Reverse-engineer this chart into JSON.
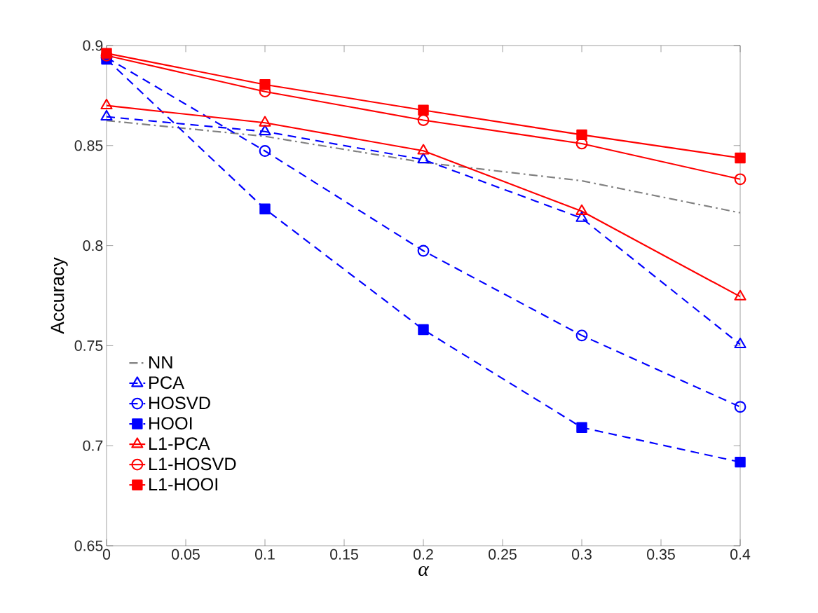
{
  "chart_data": {
    "type": "line",
    "xlabel": "α",
    "ylabel": "Accuracy",
    "x": [
      0,
      0.1,
      0.2,
      0.3,
      0.4
    ],
    "series": [
      {
        "name": "NN",
        "color": "#808080",
        "line_style": "dashdot",
        "marker": "none",
        "values": [
          0.8625,
          0.8546,
          0.8416,
          0.8324,
          0.8164
        ]
      },
      {
        "name": "PCA",
        "color": "#0000ff",
        "line_style": "dashed",
        "marker": "triangle",
        "values": [
          0.8644,
          0.857,
          0.843,
          0.8137,
          0.7506
        ]
      },
      {
        "name": "HOSVD",
        "color": "#0000ff",
        "line_style": "dashed",
        "marker": "circle",
        "values": [
          0.894,
          0.8473,
          0.7974,
          0.7551,
          0.7194
        ]
      },
      {
        "name": "HOOI",
        "color": "#0000ff",
        "line_style": "dashed",
        "marker": "square",
        "values": [
          0.8932,
          0.8183,
          0.758,
          0.7091,
          0.6918
        ]
      },
      {
        "name": "L1-PCA",
        "color": "#ff0000",
        "line_style": "solid",
        "marker": "triangle",
        "values": [
          0.87,
          0.8614,
          0.8474,
          0.8172,
          0.7745
        ]
      },
      {
        "name": "L1-HOSVD",
        "color": "#ff0000",
        "line_style": "solid",
        "marker": "circle",
        "values": [
          0.895,
          0.877,
          0.8627,
          0.851,
          0.8332
        ]
      },
      {
        "name": "L1-HOOI",
        "color": "#ff0000",
        "line_style": "solid",
        "marker": "square",
        "values": [
          0.8961,
          0.8805,
          0.8677,
          0.8554,
          0.8438
        ]
      }
    ],
    "xlim": [
      0,
      0.4
    ],
    "ylim": [
      0.65,
      0.9
    ],
    "xticks": [
      0,
      0.05,
      0.1,
      0.15,
      0.2,
      0.25,
      0.3,
      0.35,
      0.4
    ],
    "yticks": [
      0.65,
      0.7,
      0.75,
      0.8,
      0.85,
      0.9
    ],
    "grid": false,
    "legend": "bottom left"
  }
}
